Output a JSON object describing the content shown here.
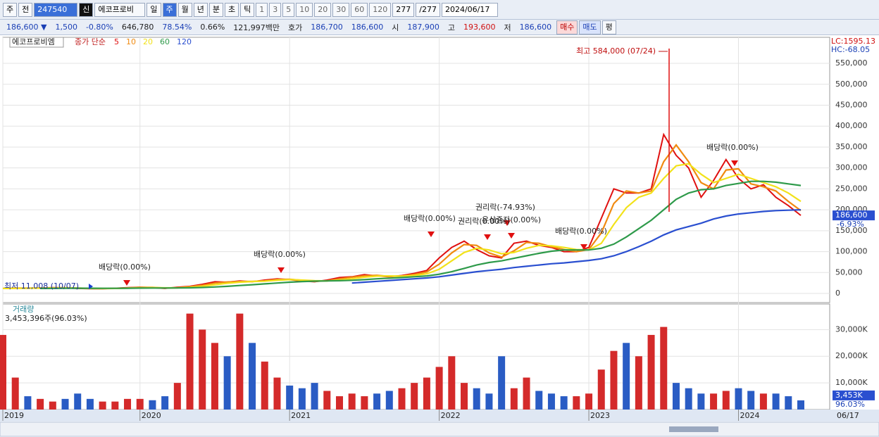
{
  "toolbar": {
    "row1": [
      "주",
      "전",
      "247540",
      "신",
      "에코프로비",
      "일",
      "주",
      "월",
      "년",
      "분",
      "초",
      "틱",
      "1",
      "3",
      "5",
      "10",
      "20",
      "30",
      "60",
      "120",
      "277",
      "/277",
      "2024/06/17"
    ],
    "row2": [
      "186,600 ▼",
      "1,500",
      "-0.80%",
      "646,780",
      "78.54%",
      "0.66%",
      "121,997백만",
      "호가",
      "186,700",
      "186,600",
      "시",
      "187,900",
      "고",
      "193,600",
      "저",
      "186,600",
      "매수",
      "매도",
      "평"
    ]
  },
  "chart_data": [
    {
      "type": "line",
      "title": "에코프로비엠",
      "subtitle": "종가 단순",
      "categories": [
        "2019",
        null,
        null,
        null,
        null,
        null,
        null,
        null,
        null,
        null,
        null,
        "2020",
        null,
        null,
        null,
        null,
        null,
        null,
        null,
        null,
        null,
        null,
        null,
        "2021",
        null,
        null,
        null,
        null,
        null,
        null,
        null,
        null,
        null,
        null,
        null,
        "2022",
        null,
        null,
        null,
        null,
        null,
        null,
        null,
        null,
        null,
        null,
        null,
        "2023",
        null,
        null,
        null,
        null,
        null,
        null,
        null,
        null,
        null,
        null,
        null,
        "2024",
        null,
        null,
        null,
        null,
        null
      ],
      "series": [
        {
          "name": "5",
          "color": "#e01010",
          "values": [
            12000,
            13000,
            12500,
            13000,
            14000,
            13500,
            12000,
            11500,
            11500,
            12500,
            14000,
            15000,
            14000,
            12000,
            15000,
            17000,
            22000,
            28000,
            27000,
            30000,
            28000,
            32000,
            35000,
            33000,
            30000,
            28000,
            32000,
            38000,
            40000,
            45000,
            42000,
            40000,
            43000,
            48000,
            55000,
            85000,
            110000,
            125000,
            105000,
            90000,
            85000,
            120000,
            125000,
            115000,
            110000,
            100000,
            100000,
            110000,
            180000,
            250000,
            240000,
            240000,
            250000,
            380000,
            330000,
            300000,
            230000,
            270000,
            320000,
            275000,
            250000,
            260000,
            230000,
            210000,
            186600
          ]
        },
        {
          "name": "10",
          "color": "#f08a10",
          "values": [
            12000,
            12500,
            12800,
            12800,
            13500,
            13800,
            12800,
            11800,
            11500,
            12000,
            13200,
            14500,
            14500,
            13000,
            13500,
            16000,
            19500,
            25000,
            27500,
            28500,
            29000,
            30000,
            33500,
            34000,
            31500,
            29000,
            30000,
            35000,
            39000,
            42500,
            43500,
            41000,
            41500,
            45500,
            51500,
            70000,
            97000,
            117000,
            115000,
            97000,
            87000,
            102000,
            122000,
            120000,
            112000,
            105000,
            100000,
            105000,
            145000,
            215000,
            245000,
            240000,
            245000,
            315000,
            355000,
            315000,
            265000,
            250000,
            295000,
            298000,
            262000,
            255000,
            245000,
            220000,
            198000
          ]
        },
        {
          "name": "20",
          "color": "#f2e21a",
          "values": [
            12000,
            12300,
            12500,
            12600,
            13000,
            13300,
            13000,
            12400,
            12000,
            12000,
            12600,
            13500,
            14000,
            13500,
            13500,
            14500,
            17000,
            21000,
            24500,
            27000,
            28500,
            29500,
            31500,
            33000,
            32000,
            30500,
            30000,
            32000,
            35000,
            39000,
            41500,
            42000,
            41500,
            43000,
            47000,
            58000,
            78000,
            98000,
            108000,
            104000,
            95000,
            98000,
            108000,
            115000,
            114000,
            110000,
            105000,
            104000,
            120000,
            165000,
            205000,
            230000,
            240000,
            275000,
            305000,
            310000,
            285000,
            265000,
            275000,
            285000,
            275000,
            265000,
            255000,
            240000,
            220000
          ]
        },
        {
          "name": "60",
          "color": "#2e9a4a",
          "values": [
            null,
            null,
            null,
            12000,
            12200,
            12400,
            12500,
            12500,
            12400,
            12400,
            12500,
            12800,
            13000,
            13000,
            13200,
            13500,
            14300,
            15500,
            17000,
            19000,
            21000,
            23000,
            25000,
            27000,
            28500,
            29500,
            30000,
            30500,
            31500,
            33000,
            35000,
            36500,
            38000,
            40000,
            42000,
            46000,
            52000,
            60000,
            68000,
            74000,
            78000,
            84000,
            90000,
            96000,
            101000,
            104000,
            104000,
            104000,
            108000,
            118000,
            135000,
            155000,
            175000,
            200000,
            225000,
            240000,
            248000,
            250000,
            258000,
            263000,
            268000,
            268000,
            266000,
            262000,
            258000
          ]
        },
        {
          "name": "120",
          "color": "#2a4fd0",
          "values": [
            null,
            null,
            null,
            null,
            null,
            null,
            null,
            null,
            null,
            null,
            null,
            null,
            null,
            null,
            null,
            null,
            null,
            null,
            null,
            null,
            null,
            null,
            null,
            null,
            null,
            null,
            null,
            null,
            25000,
            27000,
            29000,
            31000,
            33000,
            35000,
            37000,
            40000,
            44000,
            48000,
            52000,
            55000,
            58000,
            62000,
            65000,
            68000,
            71000,
            73000,
            76000,
            79000,
            83000,
            90000,
            100000,
            112000,
            125000,
            140000,
            152000,
            160000,
            168000,
            178000,
            185000,
            190000,
            193000,
            196000,
            198000,
            199000,
            200000
          ]
        }
      ],
      "ylim": [
        -21800,
        612300
      ],
      "yticks": [
        0,
        {
          "value": 50000,
          "label": "50,000"
        },
        {
          "value": 100000,
          "label": "100,000"
        },
        {
          "value": 150000,
          "label": "150,000"
        },
        {
          "value": 200000,
          "label": "200,000"
        },
        {
          "value": 250000,
          "label": "250,000"
        },
        {
          "value": 300000,
          "label": "300,000"
        },
        {
          "value": 350000,
          "label": "350,000"
        },
        {
          "value": 400000,
          "label": "400,000"
        },
        {
          "value": 450000,
          "label": "450,000"
        },
        {
          "value": 500000,
          "label": "500,000"
        },
        {
          "value": 550000,
          "label": "550,000"
        }
      ],
      "grid": true,
      "annotations": [
        "배당락(0.00%)",
        "배당락(0.00%)",
        "배당락(0.00%)",
        "권리락(-74.93%)",
        "권리락(0.00%)",
        "유상증자(0.00%)",
        "배당락(0.00%)",
        "배당락(0.00%)"
      ],
      "high_label": "최고 584,000 (07/24)",
      "low_label": "최저 11,008 (10/07)",
      "corner_labels": [
        "LC:1595.13",
        "HC:-68.05"
      ],
      "last_price": "186,600",
      "last_change": "-6.93%"
    },
    {
      "type": "bar",
      "title": "거래량",
      "subtitle": "3,453,396주(96.03%)",
      "values": [
        28000000,
        12000000,
        5000000,
        4000000,
        3000000,
        4000000,
        6000000,
        4000000,
        3000000,
        3000000,
        4000000,
        4000000,
        3500000,
        5000000,
        10000000,
        36000000,
        30000000,
        25000000,
        20000000,
        36000000,
        25000000,
        18000000,
        12000000,
        9000000,
        8000000,
        10000000,
        7000000,
        5000000,
        6000000,
        5000000,
        6000000,
        7000000,
        8000000,
        10000000,
        12000000,
        16000000,
        20000000,
        10000000,
        8000000,
        6000000,
        20000000,
        8000000,
        12000000,
        7000000,
        6000000,
        5000000,
        5000000,
        6000000,
        15000000,
        22000000,
        25000000,
        20000000,
        28000000,
        31000000,
        10000000,
        8000000,
        6000000,
        6000000,
        7000000,
        8000000,
        7000000,
        6000000,
        6000000,
        5000000,
        3453396
      ],
      "colors": [
        "#d42a2a",
        "#2a5cc4"
      ],
      "ylim": [
        0,
        39600000
      ],
      "yticks": [
        {
          "value": 10000000,
          "label": "10,000K"
        },
        {
          "value": 20000000,
          "label": "20,000K"
        },
        {
          "value": 30000000,
          "label": "30,000K"
        }
      ],
      "grid": true,
      "last_volume": "3,453K",
      "last_ratio": "96.03%",
      "x_end_label": "06/17"
    }
  ]
}
